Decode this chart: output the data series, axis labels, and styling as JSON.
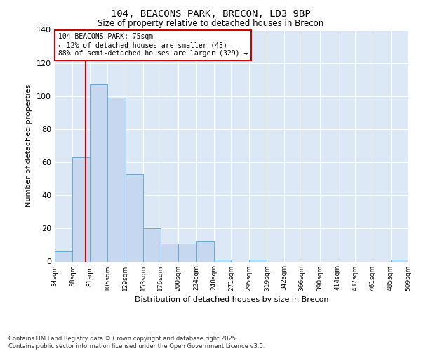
{
  "title": "104, BEACONS PARK, BRECON, LD3 9BP",
  "subtitle": "Size of property relative to detached houses in Brecon",
  "xlabel": "Distribution of detached houses by size in Brecon",
  "ylabel": "Number of detached properties",
  "bar_values": [
    6,
    63,
    107,
    99,
    53,
    20,
    11,
    11,
    12,
    1,
    0,
    1,
    0,
    0,
    0,
    0,
    0,
    0,
    0,
    1
  ],
  "bin_labels": [
    "34sqm",
    "58sqm",
    "81sqm",
    "105sqm",
    "129sqm",
    "153sqm",
    "176sqm",
    "200sqm",
    "224sqm",
    "248sqm",
    "271sqm",
    "295sqm",
    "319sqm",
    "342sqm",
    "366sqm",
    "390sqm",
    "414sqm",
    "437sqm",
    "461sqm",
    "485sqm",
    "509sqm"
  ],
  "bar_color": "#c5d8f0",
  "bar_edge_color": "#6aaad4",
  "bg_color": "#dce8f5",
  "grid_color": "#ffffff",
  "vline_x": 75,
  "vline_color": "#cc0000",
  "annotation_box_text": "104 BEACONS PARK: 75sqm\n← 12% of detached houses are smaller (43)\n88% of semi-detached houses are larger (329) →",
  "annotation_box_color": "#cc0000",
  "ylim": [
    0,
    140
  ],
  "yticks": [
    0,
    20,
    40,
    60,
    80,
    100,
    120,
    140
  ],
  "footer": "Contains HM Land Registry data © Crown copyright and database right 2025.\nContains public sector information licensed under the Open Government Licence v3.0.",
  "bin_edges": [
    34,
    58,
    81,
    105,
    129,
    153,
    176,
    200,
    224,
    248,
    271,
    295,
    319,
    342,
    366,
    390,
    414,
    437,
    461,
    485,
    509
  ]
}
